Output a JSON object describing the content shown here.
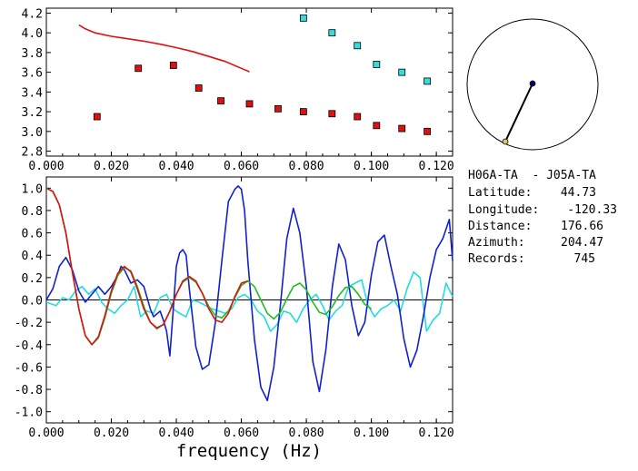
{
  "chart_data": [
    {
      "type": "scatter",
      "xlim": [
        0.0,
        0.125
      ],
      "ylim": [
        2.75,
        4.25
      ],
      "x_ticks": [
        "0.000",
        "0.020",
        "0.040",
        "0.060",
        "0.080",
        "0.100",
        "0.120"
      ],
      "y_ticks": [
        "2.8",
        "3.0",
        "3.2",
        "3.4",
        "3.6",
        "3.8",
        "4.0",
        "4.2"
      ],
      "series": [
        {
          "kind": "line",
          "color": "#dd1111",
          "x": [
            0.01,
            0.012,
            0.015,
            0.02,
            0.025,
            0.03,
            0.035,
            0.04,
            0.045,
            0.05,
            0.055,
            0.06,
            0.0625
          ],
          "y": [
            4.08,
            4.04,
            4.0,
            3.965,
            3.94,
            3.915,
            3.885,
            3.85,
            3.81,
            3.76,
            3.71,
            3.64,
            3.605
          ]
        },
        {
          "kind": "squares",
          "color": "#dd1111",
          "x": [
            0.0156,
            0.0283,
            0.0391,
            0.0469,
            0.0537,
            0.0625,
            0.0713,
            0.0791,
            0.0879,
            0.0957,
            0.1016,
            0.1094,
            0.1172
          ],
          "y": [
            3.15,
            3.64,
            3.67,
            3.44,
            3.31,
            3.28,
            3.23,
            3.2,
            3.18,
            3.15,
            3.06,
            3.03,
            3.0
          ]
        },
        {
          "kind": "squares",
          "color": "#33dddd",
          "x": [
            0.0791,
            0.0879,
            0.0957,
            0.1016,
            0.1094,
            0.1172
          ],
          "y": [
            4.15,
            4.0,
            3.87,
            3.68,
            3.6,
            3.51
          ]
        }
      ]
    },
    {
      "type": "line",
      "xlabel": "frequency (Hz)",
      "xlim": [
        0.0,
        0.125
      ],
      "ylim": [
        -1.1,
        1.1
      ],
      "x_ticks": [
        "0.000",
        "0.020",
        "0.040",
        "0.060",
        "0.080",
        "0.100",
        "0.120"
      ],
      "y_ticks": [
        "1.0",
        "0.8",
        "0.6",
        "0.4",
        "0.2",
        "0.0",
        "-0.2",
        "-0.4",
        "-0.6",
        "-0.8",
        "-1.0"
      ],
      "zero_line": true,
      "series": [
        {
          "color": "#dd1111",
          "x": [
            0,
            0.002,
            0.004,
            0.006,
            0.008,
            0.01,
            0.012,
            0.014,
            0.016,
            0.018,
            0.02,
            0.022,
            0.024,
            0.026,
            0.028,
            0.03,
            0.032,
            0.034,
            0.036,
            0.038,
            0.04,
            0.042,
            0.044,
            0.046,
            0.048,
            0.05,
            0.052,
            0.054,
            0.056,
            0.058,
            0.06,
            0.062
          ],
          "y": [
            1.0,
            0.97,
            0.85,
            0.6,
            0.25,
            -0.08,
            -0.32,
            -0.4,
            -0.33,
            -0.14,
            0.08,
            0.24,
            0.3,
            0.25,
            0.1,
            -0.08,
            -0.2,
            -0.25,
            -0.22,
            -0.1,
            0.05,
            0.17,
            0.21,
            0.17,
            0.06,
            -0.08,
            -0.18,
            -0.2,
            -0.12,
            0.03,
            0.15,
            0.17
          ]
        },
        {
          "color": "#22bb22",
          "x": [
            0,
            0.002,
            0.004,
            0.006,
            0.008,
            0.01,
            0.012,
            0.014,
            0.016,
            0.018,
            0.02,
            0.022,
            0.024,
            0.026,
            0.028,
            0.03,
            0.032,
            0.034,
            0.036,
            0.038,
            0.04,
            0.042,
            0.044,
            0.046,
            0.048,
            0.05,
            0.052,
            0.054,
            0.056,
            0.058,
            0.06,
            0.062,
            0.064,
            0.066,
            0.068,
            0.07,
            0.072,
            0.074,
            0.076,
            0.078,
            0.08,
            0.082,
            0.084,
            0.086,
            0.088,
            0.09,
            0.092,
            0.094,
            0.096,
            0.098,
            0.1
          ],
          "y": [
            1.0,
            0.97,
            0.85,
            0.6,
            0.25,
            -0.08,
            -0.32,
            -0.4,
            -0.34,
            -0.16,
            0.06,
            0.22,
            0.29,
            0.26,
            0.12,
            -0.06,
            -0.2,
            -0.26,
            -0.22,
            -0.1,
            0.05,
            0.16,
            0.2,
            0.16,
            0.06,
            -0.06,
            -0.14,
            -0.16,
            -0.1,
            0.02,
            0.13,
            0.17,
            0.12,
            0.0,
            -0.12,
            -0.17,
            -0.11,
            0.01,
            0.12,
            0.15,
            0.09,
            -0.02,
            -0.11,
            -0.13,
            -0.06,
            0.04,
            0.11,
            0.12,
            0.05,
            -0.04,
            -0.08
          ]
        },
        {
          "color": "#1122cc",
          "x": [
            0,
            0.002,
            0.004,
            0.006,
            0.008,
            0.01,
            0.012,
            0.014,
            0.016,
            0.018,
            0.02,
            0.022,
            0.023,
            0.024,
            0.026,
            0.028,
            0.03,
            0.032,
            0.033,
            0.035,
            0.036,
            0.037,
            0.038,
            0.039,
            0.04,
            0.041,
            0.042,
            0.043,
            0.044,
            0.046,
            0.048,
            0.05,
            0.052,
            0.054,
            0.056,
            0.058,
            0.059,
            0.06,
            0.061,
            0.062,
            0.064,
            0.066,
            0.068,
            0.07,
            0.072,
            0.074,
            0.076,
            0.078,
            0.08,
            0.082,
            0.084,
            0.086,
            0.088,
            0.09,
            0.092,
            0.094,
            0.096,
            0.098,
            0.1,
            0.102,
            0.104,
            0.106,
            0.108,
            0.11,
            0.112,
            0.114,
            0.116,
            0.118,
            0.12,
            0.122,
            0.124,
            0.125
          ],
          "y": [
            0.0,
            0.1,
            0.3,
            0.38,
            0.27,
            0.08,
            -0.02,
            0.05,
            0.12,
            0.05,
            0.12,
            0.22,
            0.3,
            0.27,
            0.15,
            0.18,
            0.12,
            -0.08,
            -0.15,
            -0.1,
            -0.18,
            -0.28,
            -0.5,
            -0.1,
            0.3,
            0.42,
            0.45,
            0.4,
            0.1,
            -0.42,
            -0.62,
            -0.58,
            -0.2,
            0.35,
            0.88,
            0.99,
            1.02,
            0.99,
            0.8,
            0.35,
            -0.35,
            -0.78,
            -0.9,
            -0.6,
            -0.05,
            0.55,
            0.82,
            0.6,
            0.12,
            -0.55,
            -0.82,
            -0.45,
            0.12,
            0.5,
            0.36,
            -0.05,
            -0.32,
            -0.2,
            0.22,
            0.52,
            0.58,
            0.3,
            0.05,
            -0.35,
            -0.6,
            -0.45,
            -0.15,
            0.2,
            0.45,
            0.55,
            0.72,
            0.35
          ]
        },
        {
          "color": "#22dddd",
          "x": [
            0,
            0.003,
            0.005,
            0.007,
            0.009,
            0.011,
            0.013,
            0.015,
            0.017,
            0.019,
            0.021,
            0.023,
            0.025,
            0.027,
            0.029,
            0.031,
            0.033,
            0.035,
            0.037,
            0.039,
            0.041,
            0.043,
            0.045,
            0.047,
            0.049,
            0.051,
            0.053,
            0.055,
            0.057,
            0.059,
            0.061,
            0.063,
            0.065,
            0.067,
            0.069,
            0.071,
            0.073,
            0.075,
            0.077,
            0.079,
            0.081,
            0.083,
            0.085,
            0.087,
            0.089,
            0.091,
            0.093,
            0.095,
            0.097,
            0.099,
            0.101,
            0.103,
            0.105,
            0.107,
            0.109,
            0.111,
            0.113,
            0.115,
            0.117,
            0.119,
            0.121,
            0.123,
            0.125
          ],
          "y": [
            -0.02,
            -0.05,
            0.02,
            0.0,
            0.08,
            0.12,
            0.05,
            0.1,
            -0.02,
            -0.08,
            -0.12,
            -0.05,
            0.0,
            0.12,
            -0.15,
            -0.1,
            -0.12,
            0.02,
            0.05,
            -0.08,
            -0.12,
            -0.15,
            0.0,
            -0.02,
            -0.05,
            -0.08,
            -0.1,
            -0.12,
            -0.08,
            0.02,
            0.05,
            0.0,
            -0.1,
            -0.15,
            -0.28,
            -0.22,
            -0.1,
            -0.12,
            -0.2,
            -0.08,
            0.0,
            0.05,
            -0.05,
            -0.18,
            -0.1,
            -0.05,
            0.12,
            0.15,
            0.18,
            -0.05,
            -0.15,
            -0.08,
            -0.05,
            0.0,
            -0.1,
            0.1,
            0.25,
            0.2,
            -0.28,
            -0.18,
            -0.12,
            0.15,
            0.03
          ]
        }
      ]
    }
  ],
  "map_inset": {
    "circle_color": "#000000",
    "station_a_color": "#000066",
    "station_b_color": "#ddcc55"
  },
  "info": {
    "pair": "H06A-TA  - J05A-TA",
    "lat_label": "Latitude:",
    "lat_value": "44.73",
    "lon_label": "Longitude:",
    "lon_value": "-120.33",
    "dist_label": "Distance:",
    "dist_value": "176.66",
    "az_label": "Azimuth:",
    "az_value": "204.47",
    "rec_label": "Records:",
    "rec_value": "745"
  }
}
